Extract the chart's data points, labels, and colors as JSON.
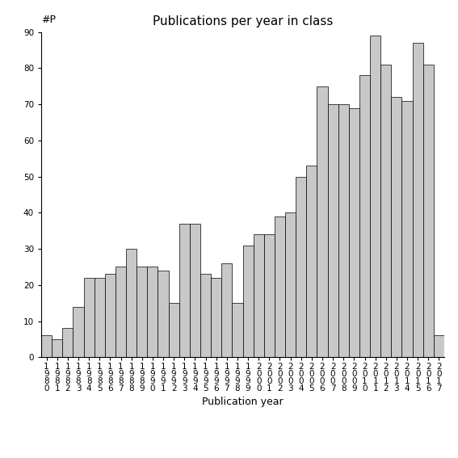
{
  "title": "Publications per year in class",
  "xlabel": "Publication year",
  "ylabel": "#P",
  "years": [
    1980,
    1981,
    1982,
    1983,
    1984,
    1985,
    1986,
    1987,
    1988,
    1989,
    1990,
    1991,
    1992,
    1993,
    1994,
    1995,
    1996,
    1997,
    1998,
    1999,
    2000,
    2001,
    2002,
    2003,
    2004,
    2005,
    2006,
    2007,
    2008,
    2009,
    2010,
    2011,
    2012,
    2013,
    2014,
    2015,
    2016,
    2017
  ],
  "values": [
    6,
    5,
    8,
    14,
    22,
    22,
    23,
    25,
    30,
    25,
    25,
    24,
    15,
    37,
    37,
    23,
    22,
    26,
    15,
    31,
    34,
    34,
    39,
    40,
    50,
    53,
    75,
    70,
    70,
    69,
    78,
    89,
    81,
    72,
    71,
    87,
    81,
    6
  ],
  "bar_color": "#c8c8c8",
  "bar_edge_color": "#000000",
  "ylim": [
    0,
    90
  ],
  "yticks": [
    0,
    10,
    20,
    30,
    40,
    50,
    60,
    70,
    80,
    90
  ],
  "background_color": "#ffffff",
  "title_fontsize": 11,
  "label_fontsize": 9,
  "tick_fontsize": 7.5
}
